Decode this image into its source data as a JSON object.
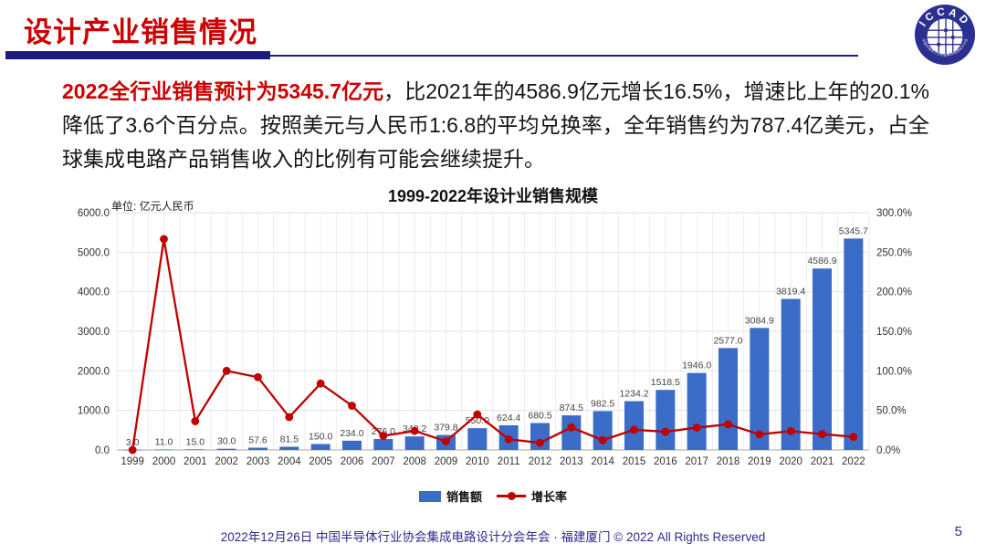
{
  "header": {
    "title": "设计产业销售情况",
    "logo_text": "ICCAD",
    "logo_ring_text": "中国半导体行业协会集成电路设计分会"
  },
  "intro": {
    "highlight": "2022全行业销售预计为5345.7亿元",
    "rest": "，比2021年的4586.9亿元增长16.5%，增速比上年的20.1%降低了3.6个百分点。按照美元与人民币1:6.8的平均兑换率，全年销售约为787.4亿美元，占全球集成电路产品销售收入的比例有可能会继续提升。"
  },
  "chart": {
    "unit_label": "单位: 亿元人民币"
  },
  "colors": {
    "bar": "#3a6cc8",
    "line": "#c00000",
    "title_red": "#cc0000",
    "navy": "#1b1b82",
    "footer_navy": "#2b2b8e"
  },
  "chart_data": {
    "type": "bar+line",
    "title": "1999-2022年设计业销售规模",
    "categories": [
      "1999",
      "2000",
      "2001",
      "2002",
      "2003",
      "2004",
      "2005",
      "2006",
      "2007",
      "2008",
      "2009",
      "2010",
      "2011",
      "2012",
      "2013",
      "2014",
      "2015",
      "2016",
      "2017",
      "2018",
      "2019",
      "2020",
      "2021",
      "2022"
    ],
    "series": [
      {
        "name": "销售额",
        "type": "bar",
        "axis": "left",
        "values": [
          3.0,
          11.0,
          15.0,
          30.0,
          57.6,
          81.5,
          150.0,
          234.0,
          276.0,
          342.2,
          379.8,
          550.0,
          624.4,
          680.5,
          874.5,
          982.5,
          1234.2,
          1518.5,
          1946.0,
          2577.0,
          3084.9,
          3819.4,
          4586.9,
          5345.7
        ]
      },
      {
        "name": "增长率",
        "type": "line",
        "axis": "right",
        "values": [
          0.0,
          266.7,
          36.4,
          100.0,
          92.0,
          41.5,
          84.0,
          56.0,
          17.9,
          24.0,
          11.0,
          44.8,
          13.5,
          9.0,
          28.5,
          12.3,
          25.6,
          23.0,
          28.2,
          32.4,
          19.7,
          23.8,
          20.1,
          16.5
        ]
      }
    ],
    "left_axis": {
      "min": 0,
      "max": 6000,
      "step": 1000
    },
    "right_axis": {
      "min": 0,
      "max": 300,
      "step": 50,
      "suffix": "%"
    },
    "grid": true,
    "legend_position": "bottom",
    "data_labels": "bar series, one decimal"
  },
  "footer": {
    "text": "2022年12月26日 中国半导体行业协会集成电路设计分会年会 · 福建厦门 © 2022 All Rights Reserved",
    "page_number": "5"
  }
}
